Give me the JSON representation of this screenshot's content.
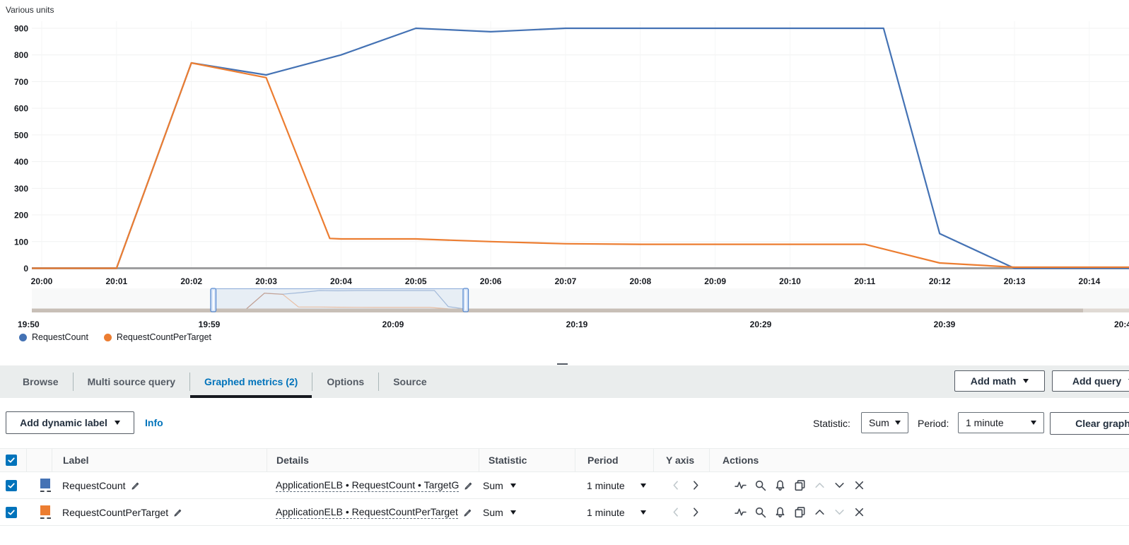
{
  "chart": {
    "unit_label": "Various units"
  },
  "chart_data": {
    "type": "line",
    "title": "Various units",
    "x_axis": {
      "unit": "time (HH:MM)",
      "ticks": [
        "20:00",
        "20:01",
        "20:02",
        "20:03",
        "20:04",
        "20:05",
        "20:06",
        "20:07",
        "20:08",
        "20:09",
        "20:10",
        "20:11",
        "20:12",
        "20:13",
        "20:14"
      ]
    },
    "y_axis": {
      "min": 0,
      "max": 900,
      "tick_step": 100
    },
    "grid": true,
    "legend_position": "bottom-left",
    "series": [
      {
        "name": "RequestCount",
        "color": "#4472b4",
        "statistic": "Sum",
        "period": "1 minute",
        "points": [
          [
            -0.13,
            0
          ],
          [
            0,
            0
          ],
          [
            1,
            0
          ],
          [
            2,
            770
          ],
          [
            3,
            725
          ],
          [
            4,
            800
          ],
          [
            5,
            900
          ],
          [
            6,
            887
          ],
          [
            7,
            900
          ],
          [
            8,
            900
          ],
          [
            9,
            900
          ],
          [
            10,
            900
          ],
          [
            11,
            900
          ],
          [
            11.25,
            900
          ],
          [
            12,
            130
          ],
          [
            13,
            0
          ],
          [
            14,
            0
          ],
          [
            14.53,
            0
          ]
        ]
      },
      {
        "name": "RequestCountPerTarget",
        "color": "#ec7d31",
        "statistic": "Sum",
        "period": "1 minute",
        "points": [
          [
            -0.13,
            0
          ],
          [
            0,
            0
          ],
          [
            1,
            0
          ],
          [
            2,
            770
          ],
          [
            3,
            715
          ],
          [
            3.85,
            112
          ],
          [
            4,
            110
          ],
          [
            5,
            110
          ],
          [
            6,
            100
          ],
          [
            7,
            92
          ],
          [
            8,
            90
          ],
          [
            9,
            90
          ],
          [
            10,
            90
          ],
          [
            11,
            90
          ],
          [
            12,
            20
          ],
          [
            13,
            4
          ],
          [
            14,
            4
          ],
          [
            14.53,
            4
          ]
        ]
      }
    ]
  },
  "minimap": {
    "tick_labels": [
      "19:50",
      "19:59",
      "20:09",
      "20:19",
      "20:29",
      "20:39",
      "20:4"
    ],
    "selection_window": [
      "20:00",
      "20:14"
    ],
    "selection_color": "#8db3e2",
    "handle_color": "#5a8bd0",
    "baseline_color": "#c8bfb7"
  },
  "legend": {
    "items": [
      {
        "label": "RequestCount",
        "color": "#4472b4"
      },
      {
        "label": "RequestCountPerTarget",
        "color": "#ec7d31"
      }
    ]
  },
  "tabs": {
    "active_index": 2,
    "items": [
      {
        "label": "Browse"
      },
      {
        "label": "Multi source query"
      },
      {
        "label": "Graphed metrics (2)"
      },
      {
        "label": "Options"
      },
      {
        "label": "Source"
      }
    ]
  },
  "toolbar": {
    "add_math_label": "Add math",
    "add_query_label": "Add query"
  },
  "controls": {
    "add_dynamic_label": "Add dynamic label",
    "info_label": "Info",
    "statistic_label": "Statistic:",
    "statistic_value": "Sum",
    "period_label": "Period:",
    "period_value": "1 minute",
    "clear_graph_label": "Clear graph"
  },
  "table": {
    "headers": {
      "label": "Label",
      "details": "Details",
      "statistic": "Statistic",
      "period": "Period",
      "y_axis": "Y axis",
      "actions": "Actions"
    },
    "rows": [
      {
        "label": "RequestCount",
        "details": "ApplicationELB • RequestCount • TargetG",
        "statistic": "Sum",
        "period": "1 minute",
        "color": "#4472b4",
        "checked": true
      },
      {
        "label": "RequestCountPerTarget",
        "details": "ApplicationELB • RequestCountPerTarget",
        "statistic": "Sum",
        "period": "1 minute",
        "color": "#ec7d31",
        "checked": true
      }
    ]
  }
}
